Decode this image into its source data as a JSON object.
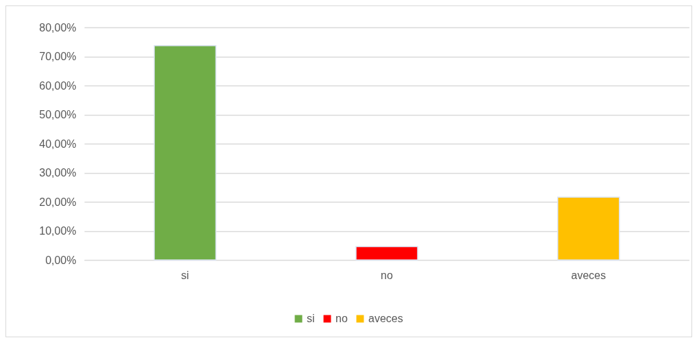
{
  "chart_data": {
    "type": "bar",
    "categories": [
      "si",
      "no",
      "aveces"
    ],
    "series": [
      {
        "name": "si",
        "color": "#70ad47",
        "values": [
          73.7,
          null,
          null
        ]
      },
      {
        "name": "no",
        "color": "#ff0000",
        "values": [
          null,
          4.6,
          null
        ]
      },
      {
        "name": "aveces",
        "color": "#ffc000",
        "values": [
          null,
          null,
          21.6
        ]
      }
    ],
    "ylim": [
      0,
      80
    ],
    "yticks": [
      {
        "value": 0,
        "label": "0,00%"
      },
      {
        "value": 10,
        "label": "10,00%"
      },
      {
        "value": 20,
        "label": "20,00%"
      },
      {
        "value": 30,
        "label": "30,00%"
      },
      {
        "value": 40,
        "label": "40,00%"
      },
      {
        "value": 50,
        "label": "50,00%"
      },
      {
        "value": 60,
        "label": "60,00%"
      },
      {
        "value": 70,
        "label": "70,00%"
      },
      {
        "value": 80,
        "label": "80,00%"
      }
    ],
    "grid": "y",
    "legend": "bottom"
  }
}
